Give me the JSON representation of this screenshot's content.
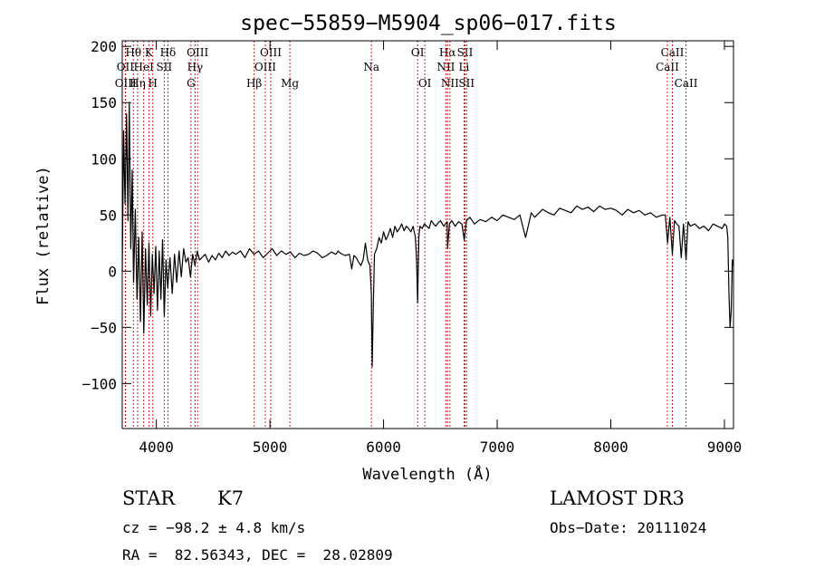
{
  "chart_data": {
    "type": "line",
    "title": "spec−55859−M5904_sp06−017.fits",
    "xlabel": "Wavelength (Å)",
    "ylabel": "Flux (relative)",
    "xlim": [
      3700,
      9080
    ],
    "ylim": [
      -140,
      205
    ],
    "xticks": [
      4000,
      5000,
      6000,
      7000,
      8000,
      9000
    ],
    "yticks": [
      -100,
      -50,
      0,
      50,
      100,
      150,
      200
    ],
    "ytick_labels": [
      "−100",
      "−50",
      "0",
      "50",
      "100",
      "150",
      "200"
    ],
    "line_color": "#000000",
    "marker_color": "#cc2222",
    "series": [
      {
        "name": "flux",
        "x": [
          3700,
          3712,
          3725,
          3738,
          3750,
          3762,
          3775,
          3788,
          3800,
          3815,
          3830,
          3845,
          3860,
          3875,
          3890,
          3905,
          3920,
          3935,
          3950,
          3965,
          3980,
          3995,
          4010,
          4025,
          4040,
          4055,
          4070,
          4085,
          4100,
          4120,
          4140,
          4160,
          4180,
          4200,
          4220,
          4240,
          4260,
          4280,
          4300,
          4320,
          4340,
          4360,
          4380,
          4400,
          4430,
          4460,
          4490,
          4520,
          4550,
          4580,
          4610,
          4640,
          4670,
          4700,
          4740,
          4780,
          4820,
          4860,
          4900,
          4940,
          4980,
          5020,
          5060,
          5100,
          5140,
          5180,
          5220,
          5260,
          5300,
          5340,
          5380,
          5420,
          5460,
          5500,
          5540,
          5580,
          5600,
          5620,
          5660,
          5700,
          5720,
          5740,
          5760,
          5780,
          5800,
          5820,
          5840,
          5860,
          5880,
          5893,
          5900,
          5910,
          5920,
          5940,
          5960,
          5980,
          6000,
          6020,
          6040,
          6060,
          6080,
          6100,
          6120,
          6140,
          6160,
          6180,
          6200,
          6220,
          6240,
          6260,
          6280,
          6290,
          6300,
          6310,
          6320,
          6340,
          6360,
          6380,
          6400,
          6420,
          6440,
          6460,
          6480,
          6500,
          6530,
          6560,
          6563,
          6580,
          6600,
          6630,
          6660,
          6690,
          6710,
          6730,
          6760,
          6800,
          6850,
          6900,
          6950,
          7000,
          7050,
          7100,
          7150,
          7200,
          7250,
          7300,
          7330,
          7350,
          7400,
          7450,
          7500,
          7550,
          7600,
          7650,
          7700,
          7750,
          7800,
          7850,
          7900,
          7950,
          8000,
          8050,
          8100,
          8150,
          8200,
          8250,
          8300,
          8350,
          8400,
          8450,
          8480,
          8500,
          8520,
          8542,
          8560,
          8580,
          8600,
          8620,
          8640,
          8662,
          8680,
          8700,
          8740,
          8780,
          8820,
          8860,
          8900,
          8940,
          8980,
          9000,
          9020,
          9030,
          9040,
          9050,
          9060,
          9070,
          9080
        ],
        "y": [
          0,
          125,
          60,
          140,
          45,
          150,
          20,
          90,
          -10,
          55,
          -25,
          30,
          -45,
          35,
          -55,
          20,
          -30,
          25,
          -40,
          15,
          -20,
          22,
          -35,
          18,
          -25,
          28,
          -40,
          10,
          -15,
          12,
          -20,
          15,
          -10,
          18,
          -5,
          20,
          8,
          12,
          -5,
          15,
          5,
          18,
          10,
          12,
          15,
          8,
          14,
          10,
          16,
          12,
          18,
          14,
          17,
          15,
          18,
          12,
          20,
          15,
          18,
          12,
          16,
          20,
          14,
          18,
          15,
          17,
          12,
          16,
          14,
          15,
          18,
          16,
          12,
          14,
          17,
          15,
          18,
          16,
          14,
          15,
          2,
          14,
          12,
          8,
          5,
          10,
          25,
          10,
          5,
          -20,
          -85,
          -30,
          15,
          20,
          30,
          25,
          35,
          28,
          32,
          38,
          30,
          40,
          35,
          38,
          42,
          36,
          40,
          38,
          35,
          40,
          30,
          10,
          -28,
          30,
          40,
          38,
          42,
          40,
          38,
          45,
          42,
          40,
          43,
          45,
          40,
          44,
          20,
          42,
          45,
          40,
          44,
          42,
          28,
          45,
          48,
          42,
          46,
          44,
          48,
          45,
          50,
          48,
          46,
          50,
          30,
          52,
          48,
          50,
          55,
          52,
          50,
          56,
          54,
          52,
          58,
          55,
          57,
          53,
          58,
          55,
          56,
          54,
          50,
          55,
          52,
          54,
          50,
          52,
          48,
          50,
          50,
          25,
          48,
          15,
          45,
          42,
          40,
          12,
          42,
          10,
          44,
          40,
          42,
          38,
          40,
          36,
          42,
          40,
          38,
          42,
          40,
          30,
          -20,
          -50,
          -35,
          10,
          5
        ]
      }
    ],
    "line_markers": [
      {
        "label": "Hθ",
        "x": 3798,
        "row": 1
      },
      {
        "label": "OII",
        "x": 3727,
        "row": 2
      },
      {
        "label": "OIII",
        "x": 3730,
        "row": 3
      },
      {
        "label": "K",
        "x": 3934,
        "row": 1
      },
      {
        "label": "HeI",
        "x": 3889,
        "row": 2
      },
      {
        "label": "Hη",
        "x": 3835,
        "row": 3
      },
      {
        "label": "Hδ",
        "x": 4102,
        "row": 1
      },
      {
        "label": "SII",
        "x": 4069,
        "row": 2
      },
      {
        "label": "H",
        "x": 3969,
        "row": 3
      },
      {
        "label": "OIII",
        "x": 4363,
        "row": 1
      },
      {
        "label": "Hγ",
        "x": 4341,
        "row": 2
      },
      {
        "label": "G",
        "x": 4305,
        "row": 3
      },
      {
        "label": "OIII",
        "x": 5007,
        "row": 1
      },
      {
        "label": "OIII",
        "x": 4959,
        "row": 2
      },
      {
        "label": "Hβ",
        "x": 4861,
        "row": 3
      },
      {
        "label": "Mg",
        "x": 5175,
        "row": 3
      },
      {
        "label": "Na",
        "x": 5893,
        "row": 2
      },
      {
        "label": "OI",
        "x": 6300,
        "row": 1
      },
      {
        "label": "OI",
        "x": 6363,
        "row": 3
      },
      {
        "label": "Hα",
        "x": 6563,
        "row": 1
      },
      {
        "label": "NII",
        "x": 6548,
        "row": 2
      },
      {
        "label": "NII",
        "x": 6584,
        "row": 3
      },
      {
        "label": "SII",
        "x": 6717,
        "row": 1
      },
      {
        "label": "Li",
        "x": 6708,
        "row": 2
      },
      {
        "label": "SII",
        "x": 6731,
        "row": 3
      },
      {
        "label": "CaII",
        "x": 8542,
        "row": 1
      },
      {
        "label": "CaII",
        "x": 8498,
        "row": 2
      },
      {
        "label": "CaII",
        "x": 8662,
        "row": 3
      }
    ]
  },
  "info": {
    "class_label": "STAR",
    "subclass": "K7",
    "survey": "LAMOST DR3",
    "cz": "cz = −98.2 ± 4.8 km/s",
    "obs_date": "Obs−Date: 20111024",
    "coords": "RA =  82.56343, DEC =  28.02809"
  }
}
